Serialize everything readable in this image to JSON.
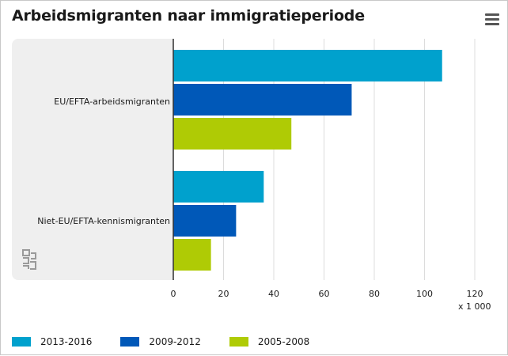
{
  "header": {
    "title": "Arbeidsmigranten naar immigratieperiode",
    "menu_icon": "hamburger-menu-icon"
  },
  "logo": "cbs-logo",
  "chart_data": {
    "type": "bar",
    "orientation": "horizontal",
    "title": "Arbeidsmigranten naar immigratieperiode",
    "categories": [
      "EU/EFTA-arbeidsmigranten",
      "Niet-EU/EFTA-kennismigranten"
    ],
    "series": [
      {
        "name": "2013-2016",
        "color": "#00a1cd",
        "values": [
          107,
          36
        ]
      },
      {
        "name": "2009-2012",
        "color": "#0058b8",
        "values": [
          71,
          25
        ]
      },
      {
        "name": "2005-2008",
        "color": "#afcb05",
        "values": [
          47,
          15
        ]
      }
    ],
    "xlim": [
      0,
      120
    ],
    "x_ticks": [
      "0",
      "20",
      "40",
      "60",
      "80",
      "100",
      "120"
    ],
    "unit_label": "x 1 000",
    "grid": true,
    "legend_position": "bottom-left"
  }
}
